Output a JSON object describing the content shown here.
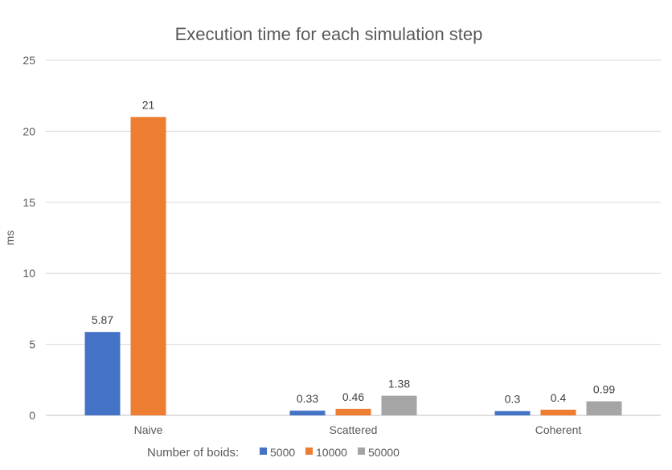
{
  "chart_data": {
    "type": "bar",
    "title": "Execution time for each simulation step",
    "xlabel": "",
    "ylabel": "ms",
    "ylim": [
      0,
      25
    ],
    "yticks": [
      0,
      5,
      10,
      15,
      20,
      25
    ],
    "grid": true,
    "legend_position": "bottom",
    "legend_title": "Number of boids:",
    "categories": [
      "Naive",
      "Scattered",
      "Coherent"
    ],
    "series": [
      {
        "name": "5000",
        "color": "#4472C4",
        "values": [
          5.87,
          0.33,
          0.3
        ],
        "labels": [
          "5.87",
          "0.33",
          "0.3"
        ]
      },
      {
        "name": "10000",
        "color": "#ED7D31",
        "values": [
          21,
          0.46,
          0.4
        ],
        "labels": [
          "21",
          "0.46",
          "0.4"
        ]
      },
      {
        "name": "50000",
        "color": "#A5A5A5",
        "values": [
          null,
          1.38,
          0.99
        ],
        "labels": [
          null,
          "1.38",
          "0.99"
        ]
      }
    ]
  }
}
